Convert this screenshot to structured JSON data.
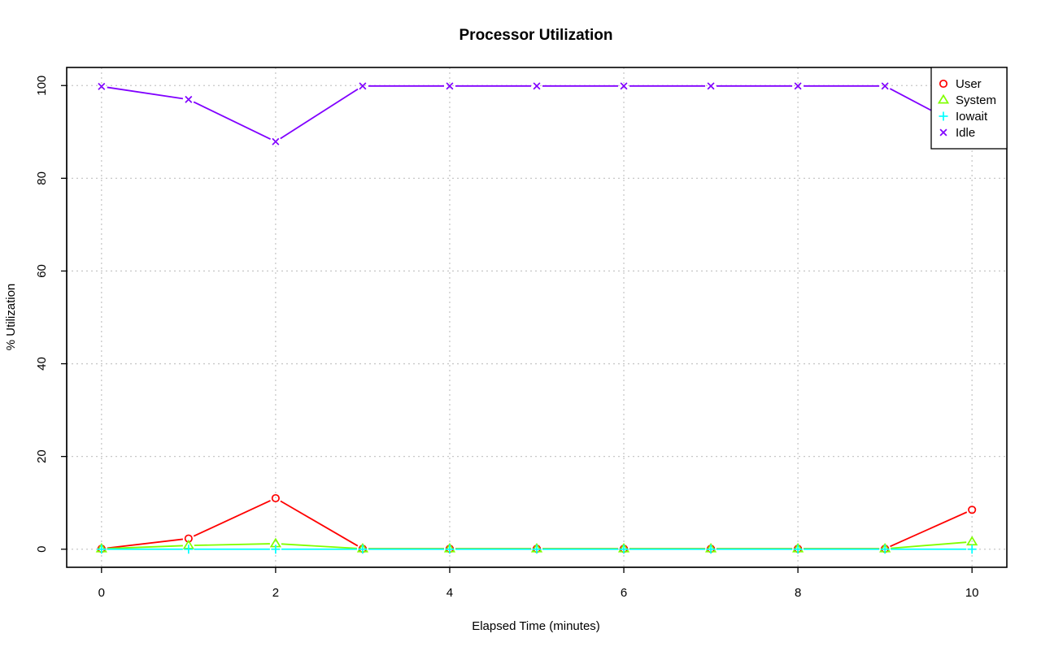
{
  "chart_data": {
    "type": "line",
    "title": "Processor Utilization",
    "xlabel": "Elapsed Time (minutes)",
    "ylabel": "% Utilization",
    "xlim": [
      -0.4,
      10.4
    ],
    "ylim": [
      -3.9,
      103.9
    ],
    "x_ticks": [
      0,
      2,
      4,
      6,
      8,
      10
    ],
    "y_ticks": [
      0,
      20,
      40,
      60,
      80,
      100
    ],
    "x_tick_labels": [
      "0",
      "2",
      "4",
      "6",
      "8",
      "10"
    ],
    "y_tick_labels": [
      "0",
      "20",
      "40",
      "60",
      "80",
      "100"
    ],
    "grid": true,
    "legend_position": "top-right",
    "x": [
      0,
      1,
      2,
      3,
      4,
      5,
      6,
      7,
      8,
      9,
      10
    ],
    "series": [
      {
        "name": "User",
        "color": "#ff0000",
        "marker": "circle",
        "values": [
          0.1,
          2.3,
          11.0,
          0.1,
          0.1,
          0.1,
          0.1,
          0.1,
          0.1,
          0.1,
          8.5
        ]
      },
      {
        "name": "System",
        "color": "#80ff00",
        "marker": "triangle",
        "values": [
          0.1,
          0.8,
          1.2,
          0.1,
          0.1,
          0.1,
          0.1,
          0.1,
          0.1,
          0.1,
          1.6
        ]
      },
      {
        "name": "Iowait",
        "color": "#00ffff",
        "marker": "plus",
        "values": [
          0,
          0,
          0,
          0,
          0,
          0,
          0,
          0,
          0,
          0,
          0
        ]
      },
      {
        "name": "Idle",
        "color": "#8000ff",
        "marker": "cross",
        "values": [
          99.8,
          97.0,
          87.9,
          99.9,
          99.9,
          99.9,
          99.9,
          99.9,
          99.9,
          99.9,
          90.0
        ]
      }
    ]
  }
}
